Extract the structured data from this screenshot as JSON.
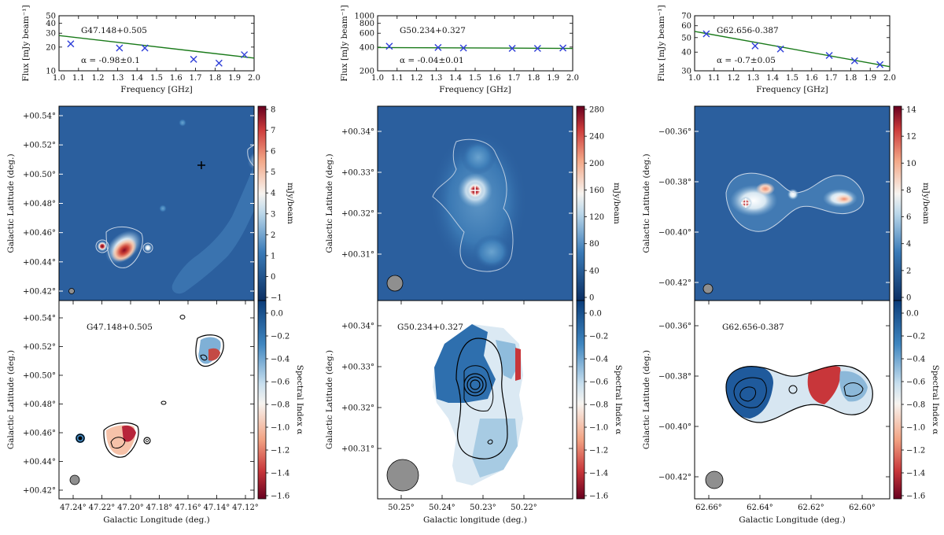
{
  "colors": {
    "fit_line": "#1a7a1a",
    "marker": "#2f3fd8",
    "map_blue": "#2b5f9e",
    "map_red": "#b2182b",
    "beam": "#8f8f8f",
    "contour_light": "#c9d6e6"
  },
  "chart_data": [
    {
      "type": "scatter",
      "panel": "spectrum",
      "source": "G47.148+0.505",
      "annotation": "α = -0.98±0.1",
      "xlabel": "Frequency [GHz]",
      "ylabel": "Flux [mJy beam⁻¹]",
      "xlim": [
        1.0,
        2.0
      ],
      "ylim": [
        10,
        50
      ],
      "yscale": "log",
      "xticks": [
        "1.0",
        "1.1",
        "1.2",
        "1.3",
        "1.4",
        "1.5",
        "1.6",
        "1.7",
        "1.8",
        "1.9",
        "2.0"
      ],
      "yticks": [
        "10",
        "20",
        "30",
        "40",
        "50"
      ],
      "x": [
        1.06,
        1.31,
        1.44,
        1.69,
        1.82,
        1.95
      ],
      "y": [
        22,
        19.5,
        19.5,
        14,
        12.5,
        16
      ],
      "fit": {
        "x": [
          1.0,
          2.0
        ],
        "y": [
          28,
          14.5
        ]
      }
    },
    {
      "type": "scatter",
      "panel": "spectrum",
      "source": "G50.234+0.327",
      "annotation": "α = -0.04±0.01",
      "xlabel": "Frequency [GHz]",
      "ylabel": "Flux [mJy beam⁻¹]",
      "xlim": [
        1.0,
        2.0
      ],
      "ylim": [
        200,
        1000
      ],
      "yscale": "log",
      "xticks": [
        "1.0",
        "1.1",
        "1.2",
        "1.3",
        "1.4",
        "1.5",
        "1.6",
        "1.7",
        "1.8",
        "1.9",
        "2.0"
      ],
      "yticks": [
        "200",
        "400",
        "600",
        "800",
        "1000"
      ],
      "x": [
        1.06,
        1.31,
        1.44,
        1.69,
        1.82,
        1.95
      ],
      "y": [
        410,
        395,
        390,
        385,
        385,
        390
      ],
      "fit": {
        "x": [
          1.0,
          2.0
        ],
        "y": [
          395,
          385
        ]
      }
    },
    {
      "type": "scatter",
      "panel": "spectrum",
      "source": "G62.656-0.387",
      "annotation": "α = -0.7±0.05",
      "xlabel": "Frequency [GHz]",
      "ylabel": "Flux [mJy beam⁻¹]",
      "xlim": [
        1.0,
        2.0
      ],
      "ylim": [
        30,
        70
      ],
      "yscale": "log",
      "xticks": [
        "1.0",
        "1.1",
        "1.2",
        "1.3",
        "1.4",
        "1.5",
        "1.6",
        "1.7",
        "1.8",
        "1.9",
        "2.0"
      ],
      "yticks": [
        "30",
        "40",
        "50",
        "60",
        "70"
      ],
      "x": [
        1.06,
        1.31,
        1.44,
        1.69,
        1.82,
        1.95
      ],
      "y": [
        53,
        44,
        42,
        38,
        35,
        33
      ],
      "fit": {
        "x": [
          1.0,
          2.0
        ],
        "y": [
          55,
          32
        ]
      }
    },
    {
      "type": "heatmap",
      "panel": "intensity",
      "source": "G47.148+0.505",
      "ylabel": "Galactic Latitude (deg.)",
      "yticks": [
        "+00.54°",
        "+00.52°",
        "+00.50°",
        "+00.48°",
        "+00.46°",
        "+00.44°",
        "+00.42°"
      ],
      "colorbar_label": "mJy/beam",
      "colorbar_ticks": [
        "8",
        "7",
        "6",
        "5",
        "4",
        "3",
        "2",
        "1",
        "0",
        "−1"
      ]
    },
    {
      "type": "heatmap",
      "panel": "intensity",
      "source": "G50.234+0.327",
      "ylabel": "Galactic Latitude (deg.)",
      "yticks": [
        "+00.34°",
        "+00.33°",
        "+00.32°",
        "+00.31°"
      ],
      "colorbar_label": "mJy/beam",
      "colorbar_ticks": [
        "280",
        "240",
        "200",
        "160",
        "120",
        "80",
        "40",
        "0"
      ]
    },
    {
      "type": "heatmap",
      "panel": "intensity",
      "source": "G62.656-0.387",
      "ylabel": "Galactic Latitude (deg.)",
      "yticks": [
        "−00.36°",
        "−00.38°",
        "−00.40°",
        "−00.42°"
      ],
      "colorbar_label": "mJy/beam",
      "colorbar_ticks": [
        "14",
        "12",
        "10",
        "8",
        "6",
        "4",
        "2",
        "0"
      ]
    },
    {
      "type": "heatmap",
      "panel": "spectral-index",
      "source": "G47.148+0.505",
      "title": "G47.148+0.505",
      "xlabel": "Galactic Longitude (deg.)",
      "ylabel": "Galactic Latitude (deg.)",
      "xticks": [
        "47.24°",
        "47.22°",
        "47.20°",
        "47.18°",
        "47.16°",
        "47.14°",
        "47.12°"
      ],
      "yticks": [
        "+00.54°",
        "+00.52°",
        "+00.50°",
        "+00.48°",
        "+00.46°",
        "+00.44°",
        "+00.42°"
      ],
      "colorbar_label": "Spectral Index α",
      "colorbar_ticks": [
        "0.0",
        "−0.2",
        "−0.4",
        "−0.6",
        "−0.8",
        "−1.0",
        "−1.2",
        "−1.4",
        "−1.6"
      ]
    },
    {
      "type": "heatmap",
      "panel": "spectral-index",
      "source": "G50.234+0.327",
      "title": "G50.234+0.327",
      "xlabel": "Galactic longitude (deg.)",
      "ylabel": "Galactic Latitude (deg.)",
      "xticks": [
        "50.25°",
        "50.24°",
        "50.23°",
        "50.22°"
      ],
      "yticks": [
        "+00.34°",
        "+00.33°",
        "+00.32°",
        "+00.31°"
      ],
      "colorbar_label": "Spectral Index α",
      "colorbar_ticks": [
        "0.0",
        "−0.2",
        "−0.4",
        "−0.6",
        "−0.8",
        "−1.0",
        "−1.2",
        "−1.4",
        "−1.6"
      ]
    },
    {
      "type": "heatmap",
      "panel": "spectral-index",
      "source": "G62.656-0.387",
      "title": "G62.656-0.387",
      "xlabel": "Galactic Longitude (deg.)",
      "ylabel": "Galactic Latitude (deg.)",
      "xticks": [
        "62.66°",
        "62.64°",
        "62.62°",
        "62.60°"
      ],
      "yticks": [
        "−00.36°",
        "−00.38°",
        "−00.40°",
        "−00.42°"
      ],
      "colorbar_label": "Spectral Index α",
      "colorbar_ticks": [
        "0.0",
        "−0.2",
        "−0.4",
        "−0.6",
        "−0.8",
        "−1.0",
        "−1.2",
        "−1.4",
        "−1.6"
      ]
    }
  ]
}
